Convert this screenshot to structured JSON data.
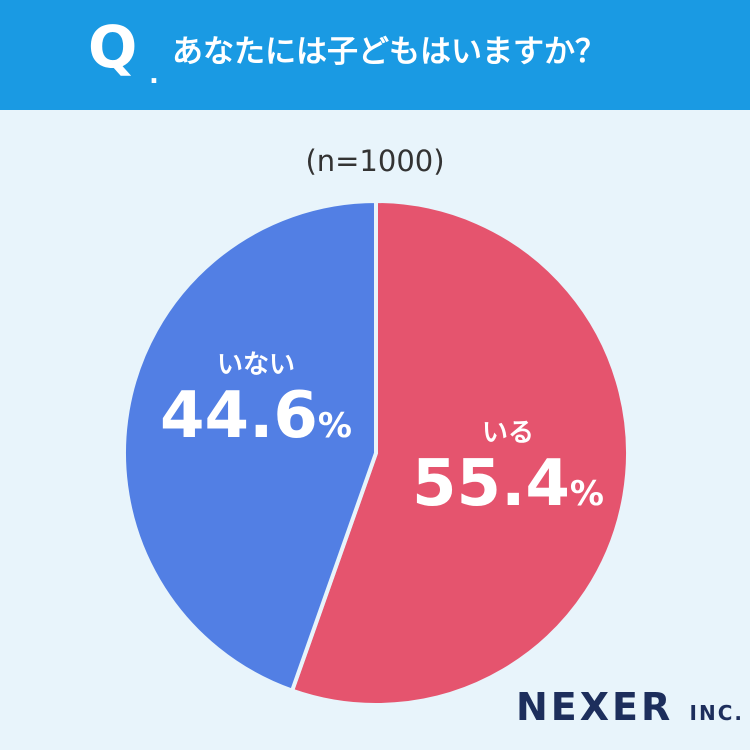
{
  "header": {
    "q_mark": "Q",
    "q_dot": ".",
    "question": "あなたには子どもはいますか？"
  },
  "chart_data": {
    "type": "pie",
    "sample_size_label": "(n=1000)",
    "slices": [
      {
        "label": "いる",
        "value": 55.4,
        "value_text": "55.4",
        "unit": "%",
        "color": "#e5546e"
      },
      {
        "label": "いない",
        "value": 44.6,
        "value_text": "44.6",
        "unit": "%",
        "color": "#527fe4"
      }
    ],
    "start": "top",
    "direction": "clockwise",
    "separator_color": "#e8f4fb"
  },
  "logo": {
    "name": "NEXER",
    "suffix": "INC."
  },
  "colors": {
    "header_bg": "#1a9ae3",
    "page_bg": "#e8f4fb",
    "logo": "#1d2e5c"
  }
}
